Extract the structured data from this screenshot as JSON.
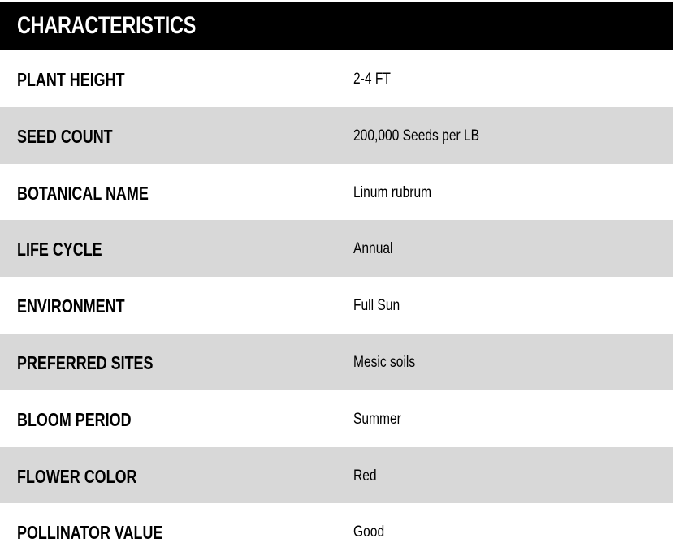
{
  "title": "CHARACTERISTICS",
  "rows": [
    {
      "label": "PLANT HEIGHT",
      "value": "2-4 FT"
    },
    {
      "label": "SEED COUNT",
      "value": "200,000 Seeds per LB"
    },
    {
      "label": "BOTANICAL NAME",
      "value": "Linum rubrum"
    },
    {
      "label": "LIFE CYCLE",
      "value": "Annual"
    },
    {
      "label": "ENVIRONMENT",
      "value": "Full Sun"
    },
    {
      "label": "PREFERRED SITES",
      "value": "Mesic soils"
    },
    {
      "label": "BLOOM PERIOD",
      "value": "Summer"
    },
    {
      "label": "FLOWER COLOR",
      "value": "Red"
    },
    {
      "label": "POLLINATOR VALUE",
      "value": "Good"
    }
  ]
}
